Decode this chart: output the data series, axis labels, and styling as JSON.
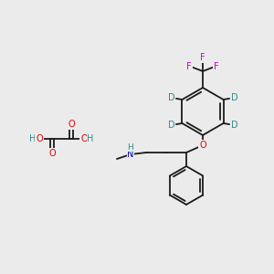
{
  "bg_color": "#ebebeb",
  "bond_color": "#1a1a1a",
  "bond_lw": 1.3,
  "atom_colors": {
    "O": "#e00000",
    "N": "#0000bb",
    "F": "#cc00cc",
    "D": "#2e8b8b",
    "H": "#2e8b8b",
    "C": "#1a1a1a"
  },
  "font_size": 7.0
}
